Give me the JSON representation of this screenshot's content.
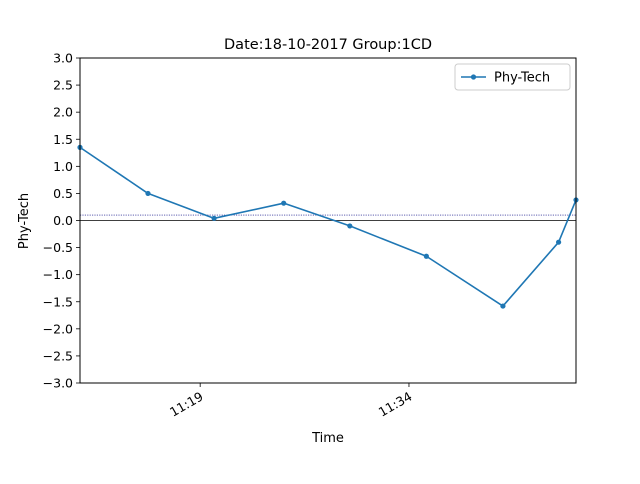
{
  "chart_data": {
    "type": "line",
    "title": "Date:18-10-2017 Group:1CD",
    "xlabel": "Time",
    "ylabel": "Phy-Tech",
    "x_format": "HH:MM",
    "xlim": [
      "11:10:22",
      "11:46:00"
    ],
    "ylim": [
      -3.0,
      3.0
    ],
    "yticks": [
      "3.0",
      "2.5",
      "2.0",
      "1.5",
      "1.0",
      "0.5",
      "0.0",
      "−0.5",
      "−1.0",
      "−1.5",
      "−2.0",
      "−2.5",
      "−3.0"
    ],
    "ytick_values": [
      3.0,
      2.5,
      2.0,
      1.5,
      1.0,
      0.5,
      0.0,
      -0.5,
      -1.0,
      -1.5,
      -2.0,
      -2.5,
      -3.0
    ],
    "xticks": [
      "11:19",
      "11:34"
    ],
    "xtick_values": [
      "11:19:00",
      "11:34:00"
    ],
    "grid": false,
    "legend_position": "top-right",
    "series": [
      {
        "name": "Phy-Tech",
        "color": "#1f77b4",
        "marker": "dot",
        "x": [
          "11:10:22",
          "11:15:15",
          "11:20:00",
          "11:25:00",
          "11:29:45",
          "11:35:15",
          "11:40:45",
          "11:44:45",
          "11:46:00"
        ],
        "y": [
          1.35,
          0.5,
          0.04,
          0.32,
          -0.1,
          -0.66,
          -1.58,
          -0.4,
          0.38
        ]
      }
    ],
    "reference_lines": [
      {
        "y": 0.0,
        "style": "solid",
        "color": "#000000"
      },
      {
        "y": 0.1,
        "style": "dotted",
        "color": "#000080"
      }
    ]
  }
}
